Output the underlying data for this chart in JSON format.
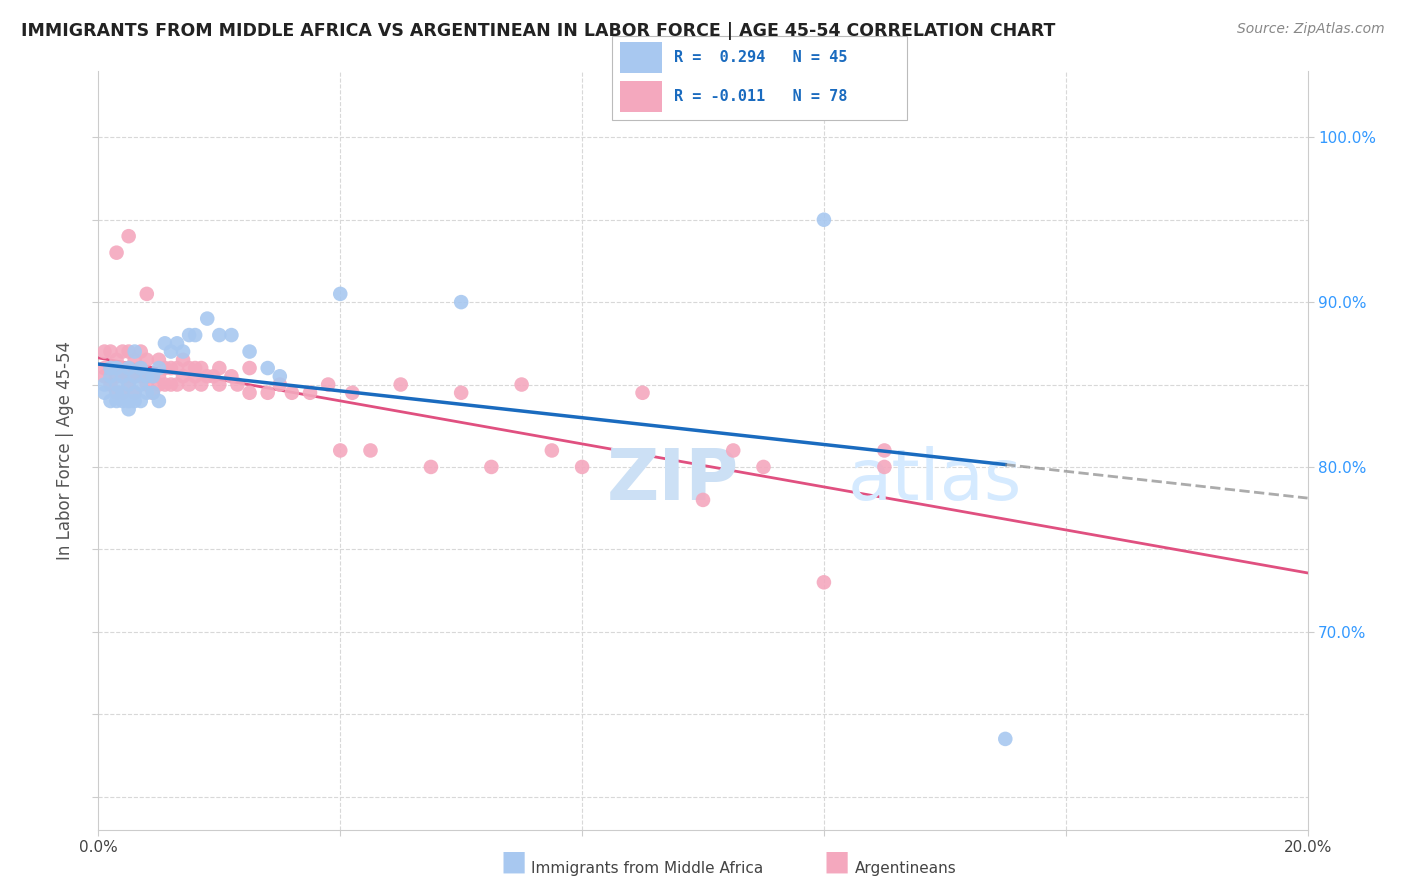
{
  "title": "IMMIGRANTS FROM MIDDLE AFRICA VS ARGENTINEAN IN LABOR FORCE | AGE 45-54 CORRELATION CHART",
  "source": "Source: ZipAtlas.com",
  "ylabel": "In Labor Force | Age 45-54",
  "blue_R": "R =  0.294",
  "blue_N": "N = 45",
  "pink_R": "R = -0.011",
  "pink_N": "N = 78",
  "blue_color": "#a8c8f0",
  "pink_color": "#f4a8be",
  "blue_line_color": "#1a6bbf",
  "pink_line_color": "#e05080",
  "grid_color": "#d8d8d8",
  "xlim": [
    0.0,
    0.2
  ],
  "ylim": [
    0.58,
    1.04
  ],
  "blue_points_x": [
    0.001,
    0.001,
    0.002,
    0.002,
    0.002,
    0.003,
    0.003,
    0.003,
    0.003,
    0.004,
    0.004,
    0.004,
    0.005,
    0.005,
    0.005,
    0.005,
    0.006,
    0.006,
    0.006,
    0.006,
    0.007,
    0.007,
    0.007,
    0.008,
    0.008,
    0.009,
    0.009,
    0.01,
    0.01,
    0.011,
    0.012,
    0.013,
    0.014,
    0.015,
    0.016,
    0.018,
    0.02,
    0.022,
    0.025,
    0.028,
    0.03,
    0.04,
    0.06,
    0.12,
    0.15
  ],
  "blue_points_y": [
    0.845,
    0.85,
    0.84,
    0.855,
    0.86,
    0.84,
    0.845,
    0.85,
    0.86,
    0.84,
    0.845,
    0.855,
    0.835,
    0.84,
    0.85,
    0.86,
    0.84,
    0.845,
    0.855,
    0.87,
    0.84,
    0.85,
    0.86,
    0.845,
    0.855,
    0.845,
    0.855,
    0.84,
    0.86,
    0.875,
    0.87,
    0.875,
    0.87,
    0.88,
    0.88,
    0.89,
    0.88,
    0.88,
    0.87,
    0.86,
    0.855,
    0.905,
    0.9,
    0.95,
    0.635
  ],
  "pink_points_x": [
    0.001,
    0.001,
    0.001,
    0.002,
    0.002,
    0.002,
    0.003,
    0.003,
    0.003,
    0.004,
    0.004,
    0.004,
    0.004,
    0.005,
    0.005,
    0.005,
    0.005,
    0.006,
    0.006,
    0.006,
    0.007,
    0.007,
    0.007,
    0.008,
    0.008,
    0.008,
    0.009,
    0.009,
    0.01,
    0.01,
    0.01,
    0.011,
    0.011,
    0.012,
    0.012,
    0.013,
    0.013,
    0.014,
    0.014,
    0.015,
    0.015,
    0.016,
    0.016,
    0.017,
    0.017,
    0.018,
    0.019,
    0.02,
    0.02,
    0.022,
    0.023,
    0.025,
    0.025,
    0.028,
    0.03,
    0.032,
    0.035,
    0.038,
    0.04,
    0.042,
    0.045,
    0.05,
    0.055,
    0.06,
    0.065,
    0.07,
    0.075,
    0.08,
    0.09,
    0.1,
    0.105,
    0.11,
    0.12,
    0.13,
    0.003,
    0.005,
    0.008,
    0.13
  ],
  "pink_points_y": [
    0.855,
    0.86,
    0.87,
    0.85,
    0.86,
    0.87,
    0.845,
    0.855,
    0.865,
    0.845,
    0.855,
    0.86,
    0.87,
    0.85,
    0.855,
    0.86,
    0.87,
    0.845,
    0.855,
    0.865,
    0.855,
    0.86,
    0.87,
    0.85,
    0.855,
    0.865,
    0.845,
    0.855,
    0.85,
    0.855,
    0.865,
    0.85,
    0.86,
    0.85,
    0.86,
    0.85,
    0.86,
    0.855,
    0.865,
    0.85,
    0.86,
    0.855,
    0.86,
    0.85,
    0.86,
    0.855,
    0.855,
    0.85,
    0.86,
    0.855,
    0.85,
    0.845,
    0.86,
    0.845,
    0.85,
    0.845,
    0.845,
    0.85,
    0.81,
    0.845,
    0.81,
    0.85,
    0.8,
    0.845,
    0.8,
    0.85,
    0.81,
    0.8,
    0.845,
    0.78,
    0.81,
    0.8,
    0.73,
    0.81,
    0.93,
    0.94,
    0.905,
    0.8
  ]
}
